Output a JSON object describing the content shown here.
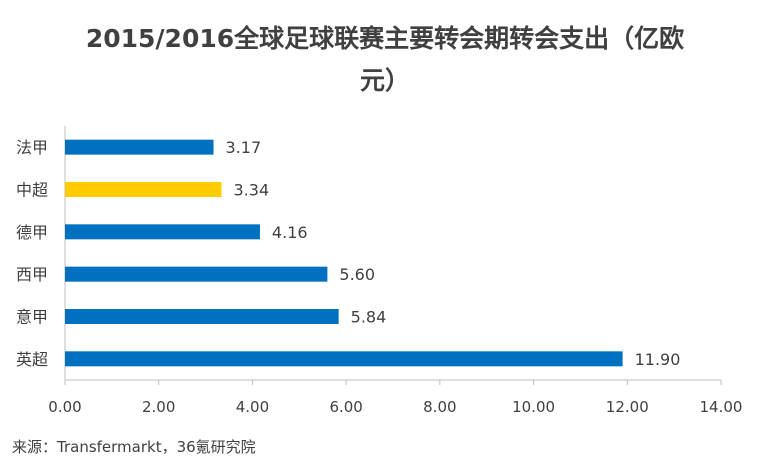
{
  "chart_data": {
    "type": "bar",
    "orientation": "horizontal",
    "title": "2015/2016全球足球联赛主要转会期转会支出（亿欧元）",
    "categories": [
      "法甲",
      "中超",
      "德甲",
      "西甲",
      "意甲",
      "英超"
    ],
    "values": [
      3.17,
      3.34,
      4.16,
      5.6,
      5.84,
      11.9
    ],
    "value_labels": [
      "3.17",
      "3.34",
      "4.16",
      "5.60",
      "5.84",
      "11.90"
    ],
    "bar_colors": [
      "#0070C0",
      "#FFCC00",
      "#0070C0",
      "#0070C0",
      "#0070C0",
      "#0070C0"
    ],
    "xlim": [
      0,
      14
    ],
    "xticks": [
      "0.00",
      "2.00",
      "4.00",
      "6.00",
      "8.00",
      "10.00",
      "12.00",
      "14.00"
    ],
    "grid": false,
    "xlabel": "",
    "ylabel": ""
  },
  "source": "来源：Transfermarkt，36氪研究院"
}
